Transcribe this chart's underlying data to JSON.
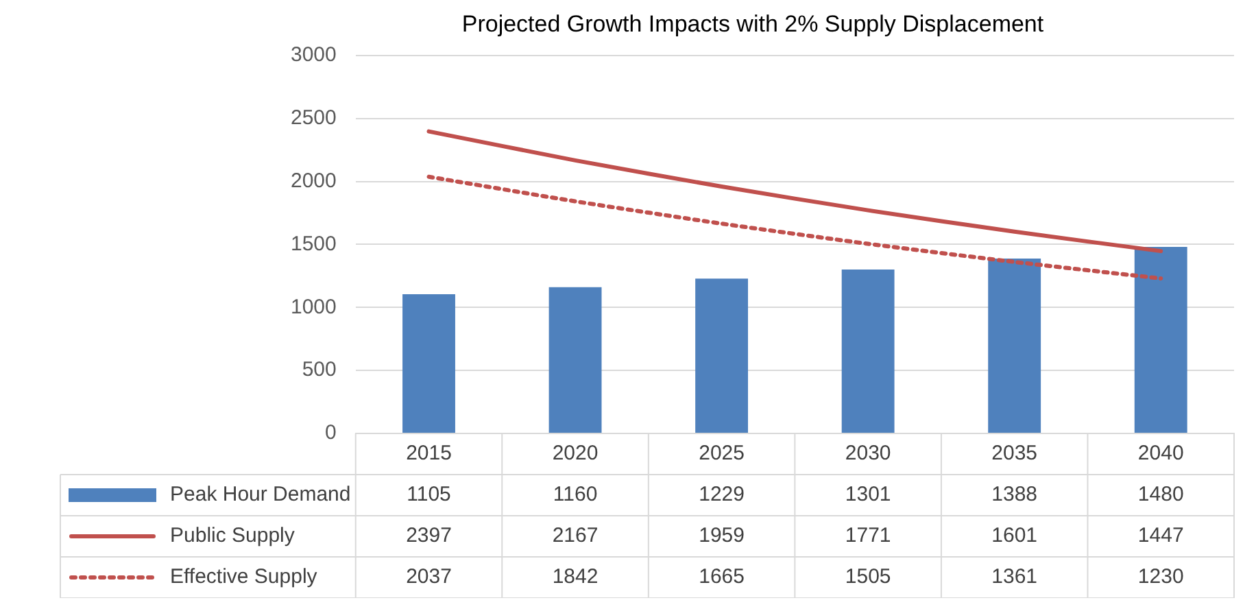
{
  "chart_data": {
    "type": "bar",
    "title": "Projected Growth Impacts with 2% Supply Displacement",
    "categories": [
      "2015",
      "2020",
      "2025",
      "2030",
      "2035",
      "2040"
    ],
    "series": [
      {
        "name": "Peak Hour Demand",
        "color": "#4f81bd",
        "values": [
          1105,
          1160,
          1229,
          1301,
          1388,
          1480
        ]
      },
      {
        "name": "Public Supply",
        "type": "line",
        "color": "#c0504d",
        "line_style": "solid",
        "values": [
          2397,
          2167,
          1959,
          1771,
          1601,
          1447
        ]
      },
      {
        "name": "Effective Supply",
        "type": "line",
        "color": "#c0504d",
        "line_style": "dotted",
        "values": [
          2037,
          1842,
          1665,
          1505,
          1361,
          1230
        ]
      }
    ],
    "ylim": [
      0,
      3000
    ],
    "yticks": [
      0,
      500,
      1000,
      1500,
      2000,
      2500,
      3000
    ],
    "grid": "y",
    "legend": "bottom",
    "data_labels": true,
    "marker": "none"
  }
}
